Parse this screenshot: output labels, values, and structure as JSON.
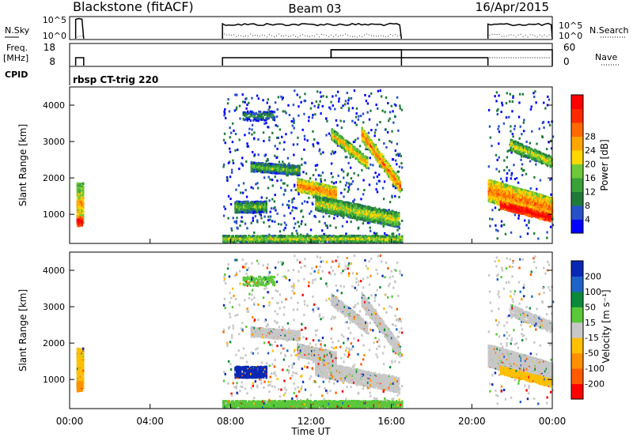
{
  "header": {
    "radar": "Blackstone (fitACF)",
    "beam": "Beam 03",
    "date": "16/Apr/2015"
  },
  "info_panels": {
    "sky_label": "N.Sky",
    "sky_ticks": [
      "10^5",
      "10^0"
    ],
    "search_label": "N.Search",
    "freq_label_1": "Freq.",
    "freq_label_2": "[MHz]",
    "freq_ticks": [
      "18",
      "8"
    ],
    "nave_label": "Nave",
    "nave_ticks": [
      "60",
      "0"
    ],
    "cpid_label": "CPID",
    "cpid_value": "rbsp CT-trig 220"
  },
  "colors": {
    "power": [
      "#0000ff",
      "#2850c8",
      "#1f7a3a",
      "#3aa03a",
      "#6ec83a",
      "#ffd700",
      "#ffa500",
      "#ff6a00",
      "#ff2a00",
      "#ff0000"
    ],
    "velocity": [
      "#0a28b4",
      "#1e64c8",
      "#0a8a3a",
      "#5ac83a",
      "#c8c8c8",
      "#ffc000",
      "#ff9000",
      "#ff5a00",
      "#ff0000"
    ]
  },
  "chart_data": [
    {
      "type": "heatmap",
      "name": "power",
      "ylabel": "Slant Range [km]",
      "yticks": [
        1000,
        2000,
        3000,
        4000
      ],
      "ylim": [
        200,
        4500
      ],
      "xticks": [
        "00:00",
        "04:00",
        "08:00",
        "12:00",
        "16:00",
        "20:00",
        "00:00"
      ],
      "xlim_hours": [
        0,
        24
      ],
      "colorbar_label": "Power [dB]",
      "colorbar_ticks": [
        "4",
        "8",
        "12",
        "16",
        "20",
        "24",
        "28"
      ],
      "data_intervals_hours": [
        [
          0.3,
          0.7
        ],
        [
          7.6,
          16.5
        ],
        [
          20.8,
          24.0
        ]
      ]
    },
    {
      "type": "heatmap",
      "name": "velocity",
      "ylabel": "Slant Range [km]",
      "yticks": [
        1000,
        2000,
        3000,
        4000
      ],
      "ylim": [
        200,
        4500
      ],
      "xticks": [
        "00:00",
        "04:00",
        "08:00",
        "12:00",
        "16:00",
        "20:00",
        "00:00"
      ],
      "xlabel": "Time UT",
      "xlim_hours": [
        0,
        24
      ],
      "colorbar_label": "Velocity [m s⁻¹]",
      "colorbar_ticks": [
        "200",
        "100",
        "50",
        "15",
        "-15",
        "-50",
        "-100",
        "-200"
      ],
      "data_intervals_hours": [
        [
          0.3,
          0.7
        ],
        [
          7.6,
          16.5
        ],
        [
          20.8,
          24.0
        ]
      ]
    }
  ]
}
